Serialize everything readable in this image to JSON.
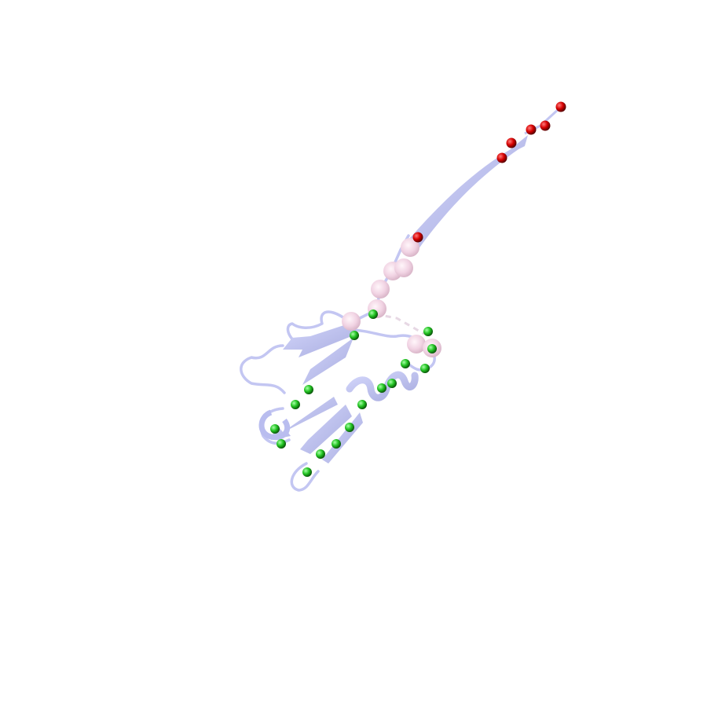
{
  "colors": {
    "background": "#ffffff",
    "ribbon": "#c3c6f2",
    "ribbon_dark": "#a9add9",
    "pink_sphere": "#f1cfe0",
    "red_sphere": "#e80000",
    "green_sphere": "#1fd31f"
  },
  "legend": []
}
